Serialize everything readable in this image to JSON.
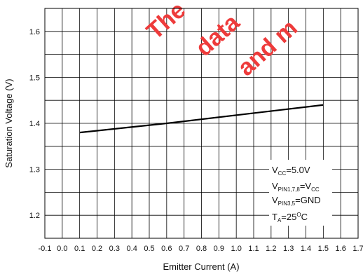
{
  "chart_data": {
    "type": "line",
    "xlabel": "Emitter Current (A)",
    "ylabel": "Saturation Voltage (V)",
    "xlim": [
      -0.1,
      1.7
    ],
    "ylim": [
      1.15,
      1.65
    ],
    "x_ticks": [
      "-0.1",
      "0.0",
      "0.1",
      "0.2",
      "0.3",
      "0.4",
      "0.5",
      "0.6",
      "0.7",
      "0.8",
      "0.9",
      "1.0",
      "1.1",
      "1.2",
      "1.3",
      "1.4",
      "1.5",
      "1.6",
      "1.7"
    ],
    "y_ticks": [
      "1.2",
      "1.3",
      "1.4",
      "1.5",
      "1.6"
    ],
    "y_tick_values": [
      1.2,
      1.3,
      1.4,
      1.5,
      1.6
    ],
    "grid": true,
    "series": [
      {
        "x": [
          0.1,
          0.6,
          1.5
        ],
        "y": [
          1.38,
          1.4,
          1.44
        ],
        "color": "#000000"
      }
    ],
    "conditions": [
      {
        "main": "V",
        "sub": "CC",
        "rest": "=5.0V"
      },
      {
        "main": "V",
        "sub": "PIN1,7,8",
        "rest": "=V",
        "sub2": "CC"
      },
      {
        "main": "V",
        "sub": "PIN3,5",
        "rest": "=GND"
      },
      {
        "main": "T",
        "sub": "A",
        "rest": "=25",
        "sup": "O",
        "rest2": "C"
      }
    ],
    "watermark": [
      "The",
      "data",
      "and m"
    ]
  }
}
